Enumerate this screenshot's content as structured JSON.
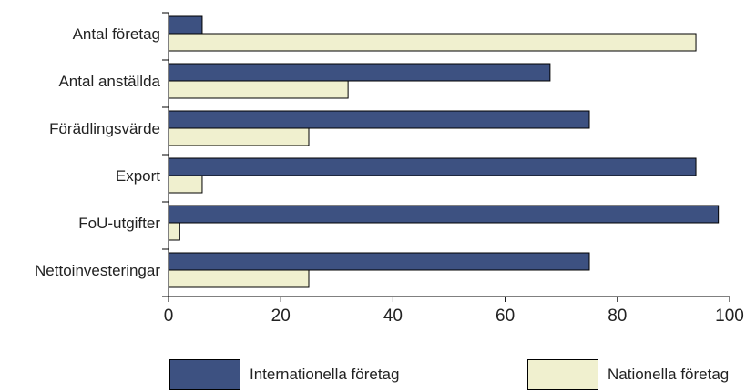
{
  "chart_data": {
    "type": "bar",
    "orientation": "horizontal",
    "categories": [
      "Antal företag",
      "Antal anställda",
      "Förädlingsvärde",
      "Export",
      "FoU-utgifter",
      "Nettoinvesteringar"
    ],
    "series": [
      {
        "name": "Internationella företag",
        "color": "#3d5181",
        "values": [
          6,
          68,
          75,
          94,
          98,
          75
        ]
      },
      {
        "name": "Nationella företag",
        "color": "#f0f0cf",
        "values": [
          94,
          32,
          25,
          6,
          2,
          25
        ]
      }
    ],
    "xlim": [
      0,
      100
    ],
    "xticks": [
      "0",
      "20",
      "40",
      "60",
      "80",
      "100"
    ],
    "grid": false,
    "legend_position": "bottom"
  }
}
